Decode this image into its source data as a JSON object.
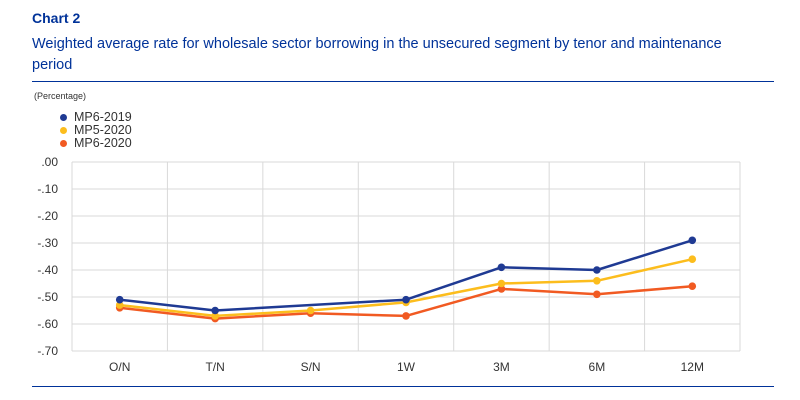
{
  "header": {
    "label": "Chart 2",
    "title": "Weighted average rate for wholesale sector borrowing in the unsecured segment by tenor and maintenance period",
    "unit": "(Percentage)"
  },
  "colors": {
    "MP6-2019": "#1f3a93",
    "MP5-2020": "#fcbd1d",
    "MP6-2020": "#f15a22",
    "grid": "#d9d9d9",
    "rule": "#003299"
  },
  "chart_data": {
    "type": "line",
    "categories": [
      "O/N",
      "T/N",
      "S/N",
      "1W",
      "3M",
      "6M",
      "12M"
    ],
    "ylim": [
      -0.7,
      0.0
    ],
    "yticks": [
      0.0,
      -0.1,
      -0.2,
      -0.3,
      -0.4,
      -0.5,
      -0.6,
      -0.7
    ],
    "ytick_labels": [
      ".00",
      "-.10",
      "-.20",
      "-.30",
      "-.40",
      "-.50",
      "-.60",
      "-.70"
    ],
    "grid": true,
    "legend_position": "top-left",
    "series": [
      {
        "name": "MP6-2019",
        "values": [
          -0.51,
          -0.55,
          null,
          -0.51,
          -0.39,
          -0.4,
          -0.29
        ]
      },
      {
        "name": "MP5-2020",
        "values": [
          -0.53,
          -0.57,
          -0.55,
          -0.52,
          -0.45,
          -0.44,
          -0.36
        ]
      },
      {
        "name": "MP6-2020",
        "values": [
          -0.54,
          -0.58,
          -0.56,
          -0.57,
          -0.47,
          -0.49,
          -0.46
        ]
      }
    ]
  }
}
